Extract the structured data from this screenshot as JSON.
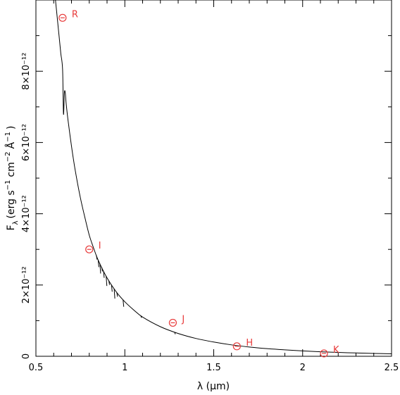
{
  "chart_data": {
    "type": "line",
    "title": "",
    "xlabel": "λ (μm)",
    "ylabel": "F_λ (erg s^-1 cm^-2 Å^-1)",
    "xlim": [
      0.5,
      2.5
    ],
    "ylim": [
      0,
      1e-11
    ],
    "grid": false,
    "x_ticks": [
      {
        "value": 0.5,
        "label": "0.5"
      },
      {
        "value": 1.0,
        "label": "1"
      },
      {
        "value": 1.5,
        "label": "1.5"
      },
      {
        "value": 2.0,
        "label": "2"
      },
      {
        "value": 2.5,
        "label": "2.5"
      }
    ],
    "y_ticks": [
      {
        "value": 0,
        "label": "0"
      },
      {
        "value": 2e-12,
        "label": "2×10⁻¹²"
      },
      {
        "value": 4e-12,
        "label": "4×10⁻¹²"
      },
      {
        "value": 6e-12,
        "label": "6×10⁻¹²"
      },
      {
        "value": 8e-12,
        "label": "8×10⁻¹²"
      }
    ],
    "ylabel_parts": {
      "f": "F",
      "lambda": "λ",
      "open": "(erg s",
      "exp1": "−1",
      "cm": "cm",
      "exp2": "−2",
      "angstrom": "Å",
      "exp3": "−1",
      "close": ")"
    },
    "series": [
      {
        "type": "line",
        "color": "#000000",
        "x": [
          0.61,
          0.62,
          0.63,
          0.64,
          0.65,
          0.655,
          0.66,
          0.665,
          0.67,
          0.68,
          0.7,
          0.72,
          0.75,
          0.78,
          0.8,
          0.82,
          0.85,
          0.9,
          0.95,
          1.0,
          1.05,
          1.1,
          1.2,
          1.3,
          1.4,
          1.5,
          1.6,
          1.7,
          1.8,
          1.9,
          2.0,
          2.1,
          2.2,
          2.3,
          2.4,
          2.5
        ],
        "y": [
          1e-11,
          9.5e-12,
          9e-12,
          8.5e-12,
          8.05e-12,
          6.8e-12,
          7.4e-12,
          7.4e-12,
          7.1e-12,
          6.65e-12,
          5.9e-12,
          5.25e-12,
          4.45e-12,
          3.8e-12,
          3.4e-12,
          3.1e-12,
          2.7e-12,
          2.2e-12,
          1.82e-12,
          1.53e-12,
          1.3e-12,
          1.1e-12,
          8.3e-13,
          6.4e-13,
          5e-13,
          4e-13,
          3.2e-13,
          2.6e-13,
          2.15e-13,
          1.8e-13,
          1.5e-13,
          1.27e-13,
          1.08e-13,
          9.3e-14,
          8e-14,
          7e-14
        ]
      },
      {
        "type": "scatter",
        "marker": "circle-minus",
        "color": "#e83a3a",
        "points": [
          {
            "label": "R",
            "x": 0.65,
            "y": 9.5e-12
          },
          {
            "label": "I",
            "x": 0.8,
            "y": 3e-12
          },
          {
            "label": "J",
            "x": 1.27,
            "y": 9.4e-13
          },
          {
            "label": "H",
            "x": 1.63,
            "y": 2.8e-13
          },
          {
            "label": "K",
            "x": 2.12,
            "y": 8e-14
          }
        ]
      }
    ]
  }
}
